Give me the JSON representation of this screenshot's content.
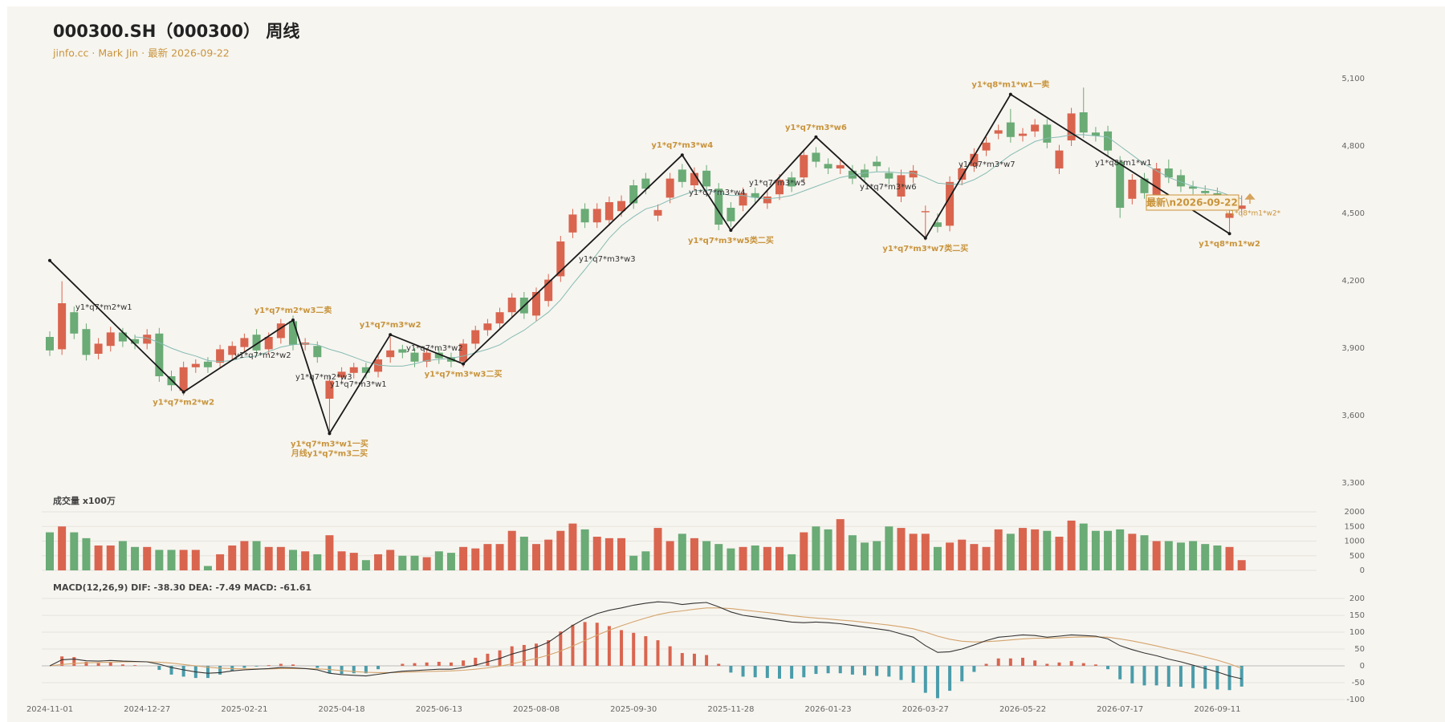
{
  "chart_data": [
    {
      "type": "candlestick",
      "title": "000300.SH（000300） 周线",
      "subtitle": "jinfo.cc · Mark Jin · 最新 2026-09-22",
      "categories": [
        "2024-11-01",
        null,
        null,
        null,
        null,
        null,
        null,
        null,
        "2024-12-27",
        null,
        null,
        null,
        null,
        null,
        null,
        null,
        "2025-02-21",
        null,
        null,
        null,
        null,
        null,
        null,
        null,
        "2025-04-18",
        null,
        null,
        null,
        null,
        null,
        null,
        null,
        "2025-06-13",
        null,
        null,
        null,
        null,
        null,
        null,
        null,
        "2025-08-08",
        null,
        null,
        null,
        null,
        null,
        null,
        null,
        "2025-09-30",
        null,
        null,
        null,
        null,
        null,
        null,
        null,
        "2025-11-28",
        null,
        null,
        null,
        null,
        null,
        null,
        null,
        "2026-01-23",
        null,
        null,
        null,
        null,
        null,
        null,
        null,
        "2026-03-27",
        null,
        null,
        null,
        null,
        null,
        null,
        null,
        "2026-05-22",
        null,
        null,
        null,
        null,
        null,
        null,
        null,
        "2026-07-17",
        null,
        null,
        null,
        null,
        null,
        null,
        null,
        "2026-09-11",
        null,
        null
      ],
      "open": [
        3950,
        3895,
        4060,
        3985,
        3875,
        3910,
        3970,
        3940,
        3920,
        3965,
        3775,
        3710,
        3815,
        3840,
        3835,
        3870,
        3905,
        3960,
        3895,
        3945,
        4020,
        3915,
        3910,
        3675,
        3770,
        3790,
        3815,
        3795,
        3860,
        3895,
        3880,
        3840,
        3880,
        3860,
        3840,
        3920,
        3980,
        4010,
        4060,
        4125,
        4045,
        4110,
        4220,
        4415,
        4520,
        4460,
        4470,
        4510,
        4625,
        4655,
        4490,
        4570,
        4695,
        4625,
        4690,
        4610,
        4525,
        4535,
        4590,
        4545,
        4585,
        4660,
        4660,
        4770,
        4720,
        4700,
        4690,
        4695,
        4730,
        4680,
        4575,
        4660,
        4505,
        4460,
        4445,
        4650,
        4710,
        4780,
        4855,
        4905,
        4845,
        4865,
        4895,
        4700,
        4825,
        4950,
        4860,
        4865,
        4730,
        4565,
        4655,
        4565,
        4700,
        4670,
        4620,
        4600,
        4590,
        4480,
        4520
      ],
      "high": [
        3975,
        4198,
        4085,
        4010,
        3945,
        3995,
        3990,
        3960,
        3985,
        3990,
        3800,
        3840,
        3850,
        3860,
        3915,
        3930,
        3965,
        3985,
        3970,
        4030,
        4045,
        3945,
        3930,
        3780,
        3815,
        3835,
        3835,
        3870,
        3950,
        3915,
        3900,
        3900,
        3900,
        3880,
        3940,
        4000,
        4030,
        4080,
        4145,
        4150,
        4170,
        4230,
        4400,
        4520,
        4545,
        4545,
        4575,
        4580,
        4650,
        4680,
        4540,
        4680,
        4720,
        4705,
        4715,
        4635,
        4550,
        4615,
        4615,
        4600,
        4675,
        4685,
        4785,
        4795,
        4745,
        4740,
        4715,
        4720,
        4755,
        4705,
        4695,
        4715,
        4535,
        4500,
        4665,
        4725,
        4790,
        4840,
        4895,
        4965,
        4880,
        4920,
        4920,
        4805,
        4970,
        5060,
        4885,
        4890,
        4755,
        4675,
        4680,
        4725,
        4740,
        4695,
        4645,
        4625,
        4615,
        4525,
        4580
      ],
      "low": [
        3865,
        3870,
        3940,
        3845,
        3850,
        3885,
        3905,
        3895,
        3895,
        3750,
        3710,
        3690,
        3790,
        3790,
        3810,
        3845,
        3880,
        3865,
        3870,
        3920,
        3890,
        3890,
        3835,
        3520,
        3745,
        3765,
        3765,
        3770,
        3835,
        3855,
        3815,
        3815,
        3830,
        3815,
        3815,
        3895,
        3955,
        3985,
        4035,
        4030,
        4020,
        4085,
        4195,
        4390,
        4435,
        4435,
        4445,
        4485,
        4520,
        4585,
        4465,
        4545,
        4615,
        4600,
        4595,
        4425,
        4440,
        4510,
        4545,
        4520,
        4560,
        4595,
        4635,
        4705,
        4675,
        4675,
        4630,
        4635,
        4685,
        4630,
        4550,
        4635,
        4380,
        4415,
        4420,
        4625,
        4685,
        4755,
        4830,
        4815,
        4820,
        4840,
        4790,
        4675,
        4800,
        4835,
        4820,
        4755,
        4480,
        4540,
        4565,
        4540,
        4635,
        4595,
        4585,
        4565,
        4535,
        4410,
        4495
      ],
      "close": [
        3890,
        4100,
        3965,
        3870,
        3920,
        3970,
        3930,
        3920,
        3960,
        3775,
        3735,
        3815,
        3830,
        3815,
        3895,
        3910,
        3945,
        3890,
        3950,
        4010,
        3915,
        3925,
        3860,
        3755,
        3795,
        3815,
        3790,
        3850,
        3890,
        3880,
        3840,
        3880,
        3855,
        3840,
        3920,
        3980,
        4010,
        4060,
        4125,
        4055,
        4150,
        4205,
        4375,
        4495,
        4460,
        4520,
        4550,
        4555,
        4545,
        4610,
        4515,
        4655,
        4640,
        4680,
        4620,
        4450,
        4465,
        4590,
        4570,
        4575,
        4650,
        4620,
        4760,
        4730,
        4700,
        4715,
        4655,
        4660,
        4710,
        4655,
        4670,
        4690,
        4510,
        4440,
        4640,
        4700,
        4765,
        4815,
        4870,
        4840,
        4855,
        4895,
        4815,
        4780,
        4945,
        4860,
        4845,
        4780,
        4525,
        4650,
        4590,
        4700,
        4660,
        4620,
        4610,
        4590,
        4560,
        4500,
        4535
      ],
      "ma": [
        null,
        null,
        null,
        null,
        null,
        null,
        null,
        3950,
        3945,
        3925,
        3900,
        3880,
        3865,
        3845,
        3840,
        3845,
        3860,
        3865,
        3885,
        3905,
        3915,
        3920,
        3915,
        3895,
        3880,
        3860,
        3840,
        3825,
        3820,
        3820,
        3830,
        3845,
        3850,
        3855,
        3865,
        3880,
        3895,
        3915,
        3950,
        3980,
        4020,
        4060,
        4115,
        4185,
        4250,
        4320,
        4390,
        4445,
        4485,
        4520,
        4535,
        4560,
        4580,
        4600,
        4605,
        4590,
        4580,
        4580,
        4570,
        4565,
        4570,
        4580,
        4600,
        4620,
        4640,
        4660,
        4670,
        4680,
        4685,
        4685,
        4680,
        4680,
        4660,
        4635,
        4630,
        4630,
        4650,
        4680,
        4720,
        4760,
        4790,
        4820,
        4835,
        4840,
        4850,
        4850,
        4845,
        4840,
        4800,
        4760,
        4720,
        4690,
        4660,
        4640,
        4620,
        4610,
        4600,
        4580,
        4565
      ],
      "up_color": "#d9654f",
      "down_color": "#6aab76",
      "ma_color": "#86bcb3",
      "zigzag": {
        "color": "#1a1a1a",
        "x": [
          0,
          11,
          20,
          23,
          28,
          34,
          52,
          56,
          63,
          72,
          79,
          97
        ],
        "values": [
          4290,
          3705,
          4025,
          3520,
          3960,
          3830,
          4760,
          4425,
          4840,
          4390,
          5030,
          4410
        ],
        "labels": [
          null,
          [
            "y1*q7*m2*w2"
          ],
          [
            "y1*q7*m2*w3二卖"
          ],
          [
            "y1*q7*m3*w1一买",
            "月线y1*q7*m3二买"
          ],
          [
            "y1*q7*m3*w2"
          ],
          [
            "y1*q7*m3*w3二买"
          ],
          [
            "y1*q7*m3*w4"
          ],
          [
            "y1*q7*m3*w5类二买"
          ],
          [
            "y1*q7*m3*w6"
          ],
          [
            "y1*q7*m3*w7类二买"
          ],
          [
            "y1*q8*m1*w1一卖"
          ],
          [
            "y1*q8*m1*w2"
          ]
        ]
      },
      "notes": [
        "y1*q7*m2*w1",
        "y1*q7*m2*w2",
        "y1*q7*m2*w3",
        "y1*q7*m3*w1",
        "y1*q7*m3*w2",
        "y1*q7*m3*w3",
        "y1*q7*m3*w4",
        "y1*q7*m3*w5",
        "y1*q7*m3*w6",
        "y1*q7*m3*w7",
        "y1*q8*m1*w1"
      ],
      "latest_label": "最新\\n2026-09-22",
      "latest_note": "y1*q8*m1*w2*",
      "ylim": [
        3300,
        5100
      ],
      "yticks": [
        {
          "value": 3300,
          "label": "3,300"
        },
        {
          "value": 3600,
          "label": "3,600"
        },
        {
          "value": 3900,
          "label": "3,900"
        },
        {
          "value": 4200,
          "label": "4,200"
        },
        {
          "value": 4500,
          "label": "4,500"
        },
        {
          "value": 4800,
          "label": "4,800"
        },
        {
          "value": 5100,
          "label": "5,100"
        }
      ],
      "grid": false
    },
    {
      "type": "bar",
      "title": "成交量 x100万",
      "values": [
        1300,
        1500,
        1300,
        1100,
        850,
        850,
        1000,
        800,
        800,
        700,
        700,
        700,
        700,
        150,
        550,
        850,
        1000,
        1000,
        800,
        800,
        700,
        650,
        550,
        1200,
        650,
        600,
        350,
        550,
        700,
        500,
        500,
        450,
        650,
        600,
        800,
        750,
        900,
        900,
        1350,
        1150,
        900,
        1050,
        1350,
        1600,
        1400,
        1150,
        1100,
        1100,
        500,
        650,
        1450,
        1000,
        1250,
        1100,
        1000,
        900,
        750,
        800,
        850,
        800,
        800,
        550,
        1300,
        1500,
        1400,
        1750,
        1200,
        950,
        1000,
        1500,
        1450,
        1250,
        1250,
        800,
        950,
        1050,
        900,
        800,
        1400,
        1250,
        1450,
        1400,
        1350,
        1150,
        1700,
        1600,
        1350,
        1350,
        1400,
        1250,
        1200,
        1000,
        1000,
        950,
        1000,
        900,
        850,
        800,
        350
      ],
      "ylim": [
        0,
        2000
      ],
      "yticks": [
        0,
        500,
        1000,
        1500,
        2000
      ],
      "grid": true
    },
    {
      "type": "macd",
      "title": "MACD(12,26,9) DIF: -38.30 DEA: -7.49 MACD: -61.61",
      "dif": [
        0,
        18,
        20,
        15,
        14,
        16,
        14,
        13,
        12,
        5,
        -5,
        -12,
        -18,
        -22,
        -20,
        -15,
        -12,
        -10,
        -8,
        -5,
        -6,
        -8,
        -12,
        -22,
        -26,
        -28,
        -30,
        -25,
        -20,
        -16,
        -14,
        -12,
        -10,
        -10,
        -5,
        2,
        12,
        22,
        35,
        45,
        55,
        70,
        95,
        120,
        140,
        155,
        165,
        172,
        180,
        186,
        190,
        188,
        182,
        186,
        188,
        175,
        160,
        150,
        145,
        140,
        135,
        130,
        128,
        130,
        128,
        125,
        120,
        115,
        110,
        105,
        95,
        85,
        60,
        40,
        42,
        50,
        62,
        75,
        85,
        88,
        92,
        90,
        85,
        88,
        92,
        90,
        88,
        80,
        60,
        48,
        38,
        30,
        20,
        12,
        2,
        -8,
        -18,
        -30,
        -38.3
      ],
      "dea": [
        0,
        4,
        7,
        9,
        10,
        11,
        12,
        12,
        12,
        11,
        8,
        4,
        0,
        -4,
        -7,
        -8,
        -9,
        -9,
        -9,
        -8,
        -8,
        -8,
        -9,
        -11,
        -14,
        -17,
        -19,
        -20,
        -20,
        -19,
        -18,
        -17,
        -16,
        -15,
        -13,
        -10,
        -6,
        -1,
        6,
        14,
        22,
        32,
        44,
        59,
        75,
        91,
        106,
        119,
        131,
        142,
        152,
        159,
        163,
        168,
        172,
        172,
        170,
        166,
        162,
        158,
        154,
        149,
        145,
        142,
        139,
        136,
        133,
        129,
        125,
        121,
        116,
        110,
        100,
        88,
        79,
        73,
        71,
        72,
        74,
        77,
        80,
        82,
        82,
        83,
        85,
        86,
        86,
        85,
        80,
        74,
        67,
        59,
        51,
        43,
        35,
        26,
        17,
        6,
        -7.49
      ],
      "hist": [
        0,
        28,
        26,
        12,
        8,
        10,
        4,
        2,
        0,
        -12,
        -26,
        -32,
        -36,
        -36,
        -26,
        -14,
        -6,
        -2,
        2,
        6,
        4,
        0,
        -6,
        -22,
        -24,
        -22,
        -22,
        -10,
        0,
        6,
        8,
        10,
        12,
        10,
        16,
        24,
        36,
        46,
        58,
        62,
        66,
        76,
        102,
        122,
        130,
        128,
        118,
        106,
        98,
        88,
        76,
        58,
        38,
        36,
        32,
        6,
        -20,
        -32,
        -34,
        -36,
        -38,
        -38,
        -34,
        -24,
        -22,
        -22,
        -26,
        -28,
        -30,
        -32,
        -42,
        -50,
        -80,
        -96,
        -74,
        -46,
        -18,
        6,
        22,
        22,
        24,
        16,
        6,
        10,
        14,
        8,
        4,
        -10,
        -40,
        -52,
        -58,
        -58,
        -62,
        -62,
        -66,
        -68,
        -70,
        -72,
        -61.61
      ],
      "dif_color": "#333333",
      "dea_color": "#d4a46c",
      "pos_color": "#d9654f",
      "neg_color": "#4a9caa",
      "ylim": [
        -100,
        200
      ],
      "yticks": [
        -100,
        -50,
        0,
        50,
        100,
        150,
        200
      ],
      "grid": true
    }
  ]
}
